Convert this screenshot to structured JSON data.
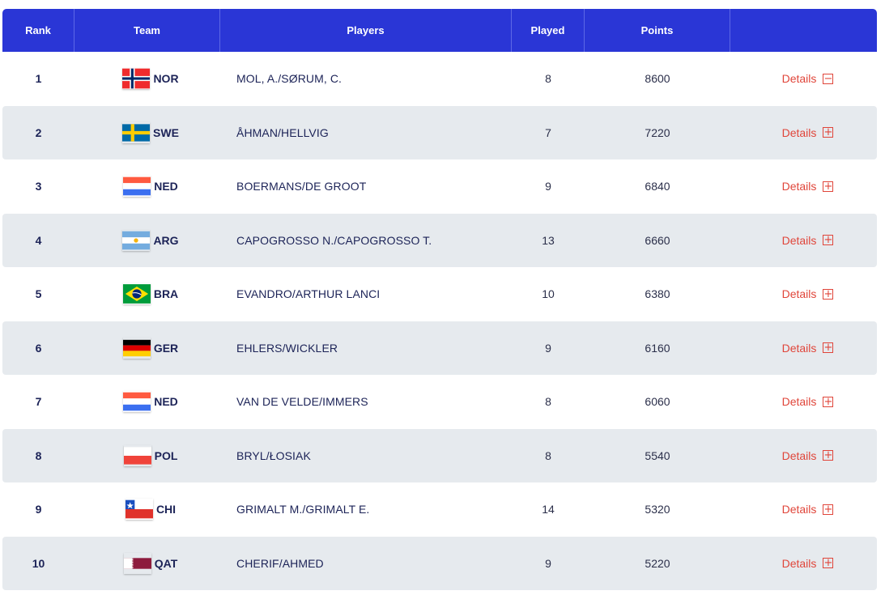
{
  "header": {
    "rank": "Rank",
    "team": "Team",
    "players": "Players",
    "played": "Played",
    "points": "Points"
  },
  "rows": [
    {
      "rank": "1",
      "flag_icon": "norway-flag-icon",
      "team": "NOR",
      "players": "MOL, A./SØRUM, C.",
      "played": "8",
      "points": "8600",
      "details": "Details",
      "toggle": "−"
    },
    {
      "rank": "2",
      "flag_icon": "sweden-flag-icon",
      "team": "SWE",
      "players": "ÅHMAN/HELLVIG",
      "played": "7",
      "points": "7220",
      "details": "Details",
      "toggle": "+"
    },
    {
      "rank": "3",
      "flag_icon": "netherlands-flag-icon",
      "team": "NED",
      "players": "BOERMANS/DE GROOT",
      "played": "9",
      "points": "6840",
      "details": "Details",
      "toggle": "+"
    },
    {
      "rank": "4",
      "flag_icon": "argentina-flag-icon",
      "team": "ARG",
      "players": "CAPOGROSSO N./CAPOGROSSO T.",
      "played": "13",
      "points": "6660",
      "details": "Details",
      "toggle": "+"
    },
    {
      "rank": "5",
      "flag_icon": "brazil-flag-icon",
      "team": "BRA",
      "players": "EVANDRO/ARTHUR LANCI",
      "played": "10",
      "points": "6380",
      "details": "Details",
      "toggle": "+"
    },
    {
      "rank": "6",
      "flag_icon": "germany-flag-icon",
      "team": "GER",
      "players": "EHLERS/WICKLER",
      "played": "9",
      "points": "6160",
      "details": "Details",
      "toggle": "+"
    },
    {
      "rank": "7",
      "flag_icon": "netherlands-flag-icon",
      "team": "NED",
      "players": "VAN DE VELDE/IMMERS",
      "played": "8",
      "points": "6060",
      "details": "Details",
      "toggle": "+"
    },
    {
      "rank": "8",
      "flag_icon": "poland-flag-icon",
      "team": "POL",
      "players": "BRYL/ŁOSIAK",
      "played": "8",
      "points": "5540",
      "details": "Details",
      "toggle": "+"
    },
    {
      "rank": "9",
      "flag_icon": "chile-flag-icon",
      "team": "CHI",
      "players": "GRIMALT M./GRIMALT E.",
      "played": "14",
      "points": "5320",
      "details": "Details",
      "toggle": "+"
    },
    {
      "rank": "10",
      "flag_icon": "qatar-flag-icon",
      "team": "QAT",
      "players": "CHERIF/AHMED",
      "played": "9",
      "points": "5220",
      "details": "Details",
      "toggle": "+"
    }
  ],
  "colors": {
    "header_bg": "#2a36d6",
    "row_alt_bg": "#e6eaee",
    "text": "#1c2357",
    "details": "#e0453a"
  }
}
